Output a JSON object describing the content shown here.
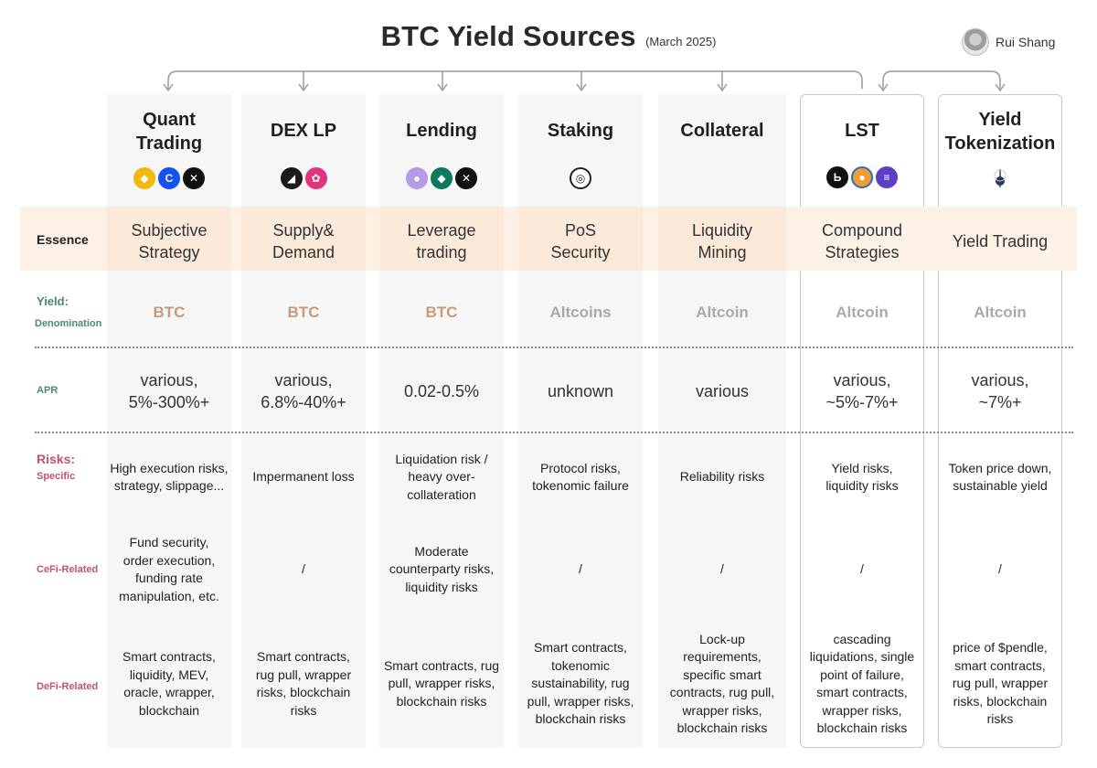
{
  "header": {
    "title": "BTC Yield Sources",
    "subtitle": "(March 2025)",
    "author": "Rui Shang"
  },
  "row_labels": {
    "essence": "Essence",
    "yield": "Yield:",
    "denomination": "Denomination",
    "apr": "APR",
    "risks": "Risks:",
    "specific": "Specific",
    "cefi": "CeFi-Related",
    "defi": "DeFi-Related"
  },
  "columns": [
    {
      "name_line1": "Quant",
      "name_line2": "Trading",
      "icons": [
        "binance-icon",
        "coinbase-icon",
        "okx-icon"
      ],
      "essence_line1": "Subjective",
      "essence_line2": "Strategy",
      "denomination": "BTC",
      "apr_line1": "various,",
      "apr_line2": "5%-300%+",
      "specific_lines": [
        "High execution risks,",
        "strategy, slippage..."
      ],
      "cefi_lines": [
        "Fund security,",
        "order execution,",
        "funding rate",
        "manipulation, etc."
      ],
      "defi_lines": [
        "Smart contracts,",
        "liquidity, MEV,",
        "oracle, wrapper,",
        "blockchain"
      ]
    },
    {
      "name_line1": "DEX LP",
      "name_line2": "",
      "icons": [
        "dex-black-icon",
        "dex-pink-icon"
      ],
      "essence_line1": "Supply&",
      "essence_line2": "Demand",
      "denomination": "BTC",
      "apr_line1": "various,",
      "apr_line2": "6.8%-40%+",
      "specific_lines": [
        "Impermanent loss"
      ],
      "cefi_lines": [
        "/"
      ],
      "defi_lines": [
        "Smart contracts,",
        "rug pull, wrapper",
        "risks, blockchain",
        "risks"
      ]
    },
    {
      "name_line1": "Lending",
      "name_line2": "",
      "icons": [
        "lending-purple-icon",
        "lending-green-icon",
        "lending-black-icon"
      ],
      "essence_line1": "Leverage",
      "essence_line2": "trading",
      "denomination": "BTC",
      "apr_line1": "0.02-0.5%",
      "apr_line2": "",
      "specific_lines": [
        "Liquidation risk /",
        "heavy over-",
        "collateration"
      ],
      "cefi_lines": [
        "Moderate",
        "counterparty risks,",
        "liquidity risks"
      ],
      "defi_lines": [
        "Smart contracts, rug",
        "pull, wrapper risks,",
        "blockchain risks"
      ]
    },
    {
      "name_line1": "Staking",
      "name_line2": "",
      "icons": [
        "staking-icon"
      ],
      "essence_line1": "PoS",
      "essence_line2": "Security",
      "denomination": "Altcoins",
      "apr_line1": "unknown",
      "apr_line2": "",
      "specific_lines": [
        "Protocol risks,",
        "tokenomic failure"
      ],
      "cefi_lines": [
        "/"
      ],
      "defi_lines": [
        "Smart contracts,",
        "tokenomic",
        "sustainability, rug",
        "pull, wrapper risks,",
        "blockchain risks"
      ]
    },
    {
      "name_line1": "Collateral",
      "name_line2": "",
      "icons": [],
      "essence_line1": "Liquidity",
      "essence_line2": "Mining",
      "denomination": "Altcoin",
      "apr_line1": "various",
      "apr_line2": "",
      "specific_lines": [
        "Reliability risks"
      ],
      "cefi_lines": [
        "/"
      ],
      "defi_lines": [
        "Lock-up",
        "requirements,",
        "specific smart",
        "contracts, rug pull,",
        "wrapper risks,",
        "blockchain risks"
      ]
    },
    {
      "name_line1": "LST",
      "name_line2": "",
      "icons": [
        "lst-black-icon",
        "lst-orange-icon",
        "lst-purple-icon"
      ],
      "essence_line1": "Compound",
      "essence_line2": "Strategies",
      "denomination": "Altcoin",
      "apr_line1": "various,",
      "apr_line2": "~5%-7%+",
      "specific_lines": [
        "Yield risks,",
        "liquidity risks"
      ],
      "cefi_lines": [
        "/"
      ],
      "defi_lines": [
        "cascading",
        "liquidations, single",
        "point of failure,",
        "smart contracts,",
        "wrapper risks,",
        "blockchain risks"
      ]
    },
    {
      "name_line1": "Yield",
      "name_line2": "Tokenization",
      "icons": [
        "pendle-icon"
      ],
      "essence_line1": "Yield Trading",
      "essence_line2": "",
      "denomination": "Altcoin",
      "apr_line1": "various,",
      "apr_line2": "~7%+",
      "specific_lines": [
        "Token price down,",
        "sustainable yield"
      ],
      "cefi_lines": [
        "/"
      ],
      "defi_lines": [
        "price of $pendle,",
        "smart contracts,",
        "rug pull, wrapper",
        "risks, blockchain",
        "risks"
      ]
    }
  ],
  "colors": {
    "btc_denomination": "#c99a79",
    "altcoin_denomination": "#a9a9a9",
    "yield_label": "#4b8a6c",
    "risk_label": "#c0546a",
    "essence_band": "#fdf1e6"
  }
}
